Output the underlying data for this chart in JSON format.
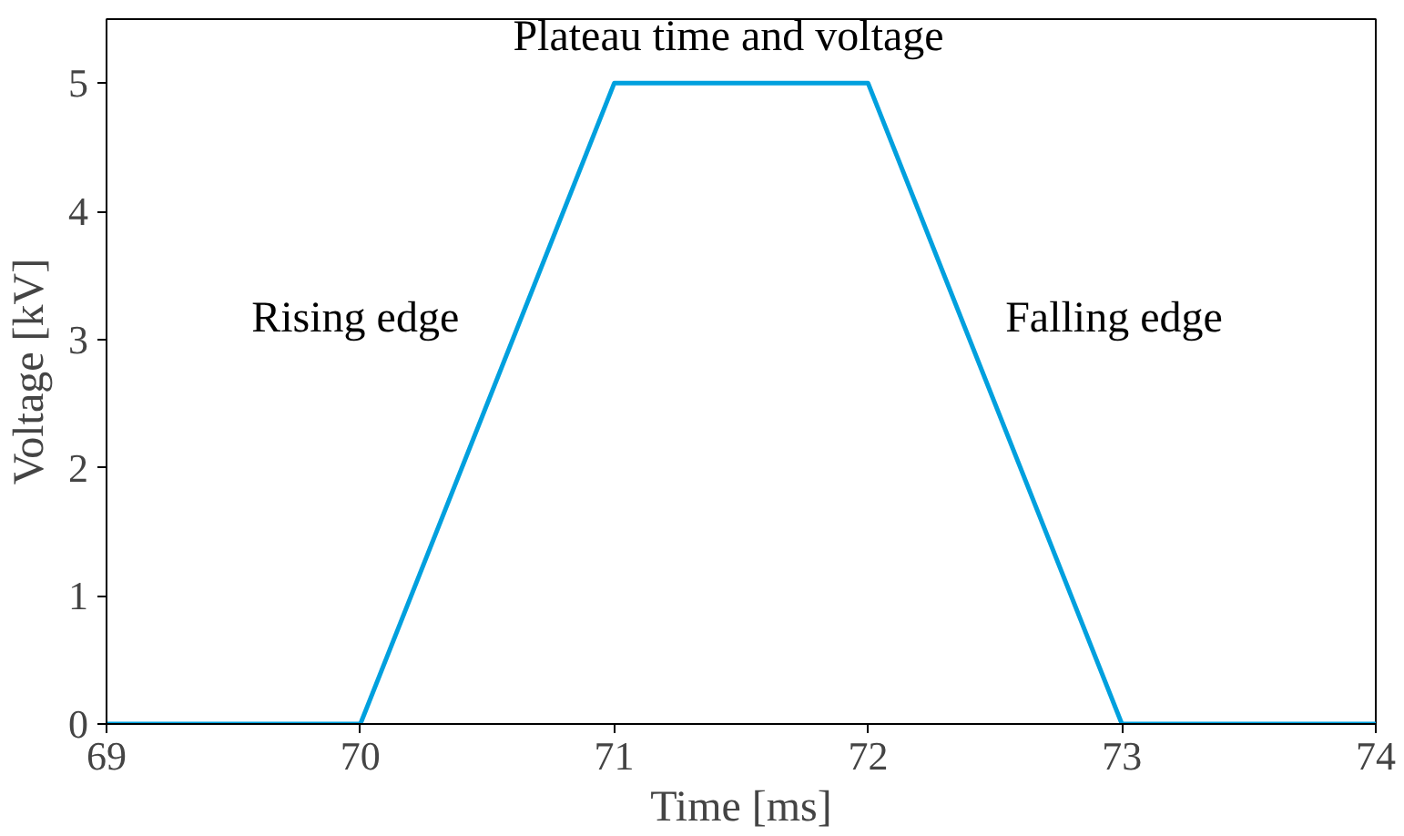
{
  "chart_data": {
    "type": "line",
    "xlabel": "Time [ms]",
    "ylabel": "Voltage [kV]",
    "x": [
      69,
      70,
      71,
      72,
      73,
      74
    ],
    "series": [
      {
        "color": "#00a0de",
        "values": [
          0,
          0,
          5,
          5,
          0,
          0
        ]
      }
    ],
    "xlim": [
      69,
      74
    ],
    "ylim": [
      0,
      5.5
    ],
    "xticks": [
      69,
      70,
      71,
      72,
      73,
      74
    ],
    "yticks": [
      0,
      1,
      2,
      3,
      4,
      5
    ],
    "grid": false,
    "annotations": [
      "Rising edge",
      "Plateau time and voltage",
      "Falling edge"
    ]
  }
}
